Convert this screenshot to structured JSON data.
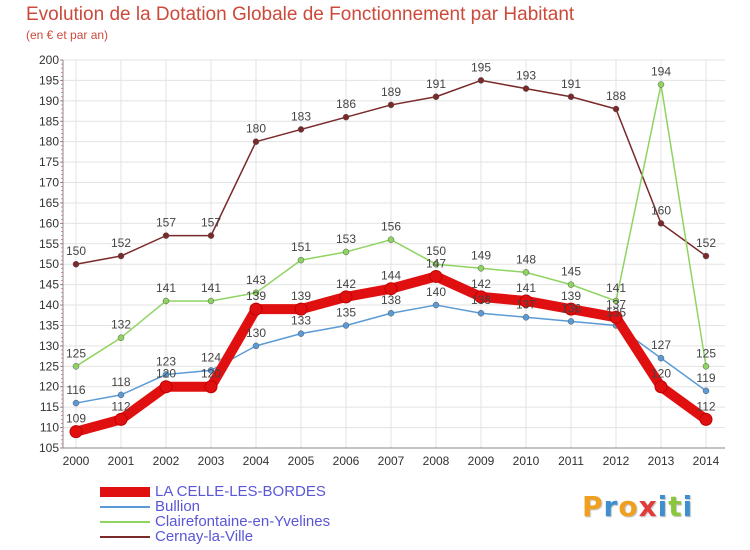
{
  "chart_data": {
    "type": "line",
    "title": "Evolution de la Dotation Globale de Fonctionnement par Habitant",
    "subtitle": "(en € et par an)",
    "x": [
      "2000",
      "2001",
      "2002",
      "2003",
      "2004",
      "2005",
      "2006",
      "2007",
      "2008",
      "2009",
      "2010",
      "2011",
      "2012",
      "2013",
      "2014"
    ],
    "ylim": [
      105,
      200
    ],
    "yticks": [
      105,
      110,
      115,
      120,
      125,
      130,
      135,
      140,
      145,
      150,
      155,
      160,
      165,
      170,
      175,
      180,
      185,
      190,
      195,
      200
    ],
    "grid": true,
    "legend_position": "bottom-left",
    "series": [
      {
        "name": "LA CELLE-LES-BORDES",
        "color": "#e01010",
        "values": [
          109,
          112,
          120,
          120,
          139,
          139,
          142,
          144,
          147,
          142,
          141,
          139,
          137,
          120,
          112
        ]
      },
      {
        "name": "Bullion",
        "color": "#5b9bd5",
        "values": [
          116,
          118,
          123,
          124,
          130,
          133,
          135,
          138,
          140,
          138,
          137,
          136,
          135,
          127,
          119
        ]
      },
      {
        "name": "Clairefontaine-en-Yvelines",
        "color": "#8fd460",
        "values": [
          125,
          132,
          141,
          141,
          143,
          151,
          153,
          156,
          150,
          149,
          148,
          145,
          141,
          194,
          125
        ]
      },
      {
        "name": "Cernay-la-Ville",
        "color": "#7a2a2a",
        "values": [
          150,
          152,
          157,
          157,
          180,
          183,
          186,
          189,
          191,
          195,
          193,
          191,
          188,
          160,
          152
        ]
      }
    ]
  },
  "logo": {
    "letters": [
      {
        "ch": "P",
        "color": "#f0a020"
      },
      {
        "ch": "r",
        "color": "#3d8fd0"
      },
      {
        "ch": "o",
        "color": "#f0a020"
      },
      {
        "ch": "x",
        "color": "#e03c3c"
      },
      {
        "ch": "i",
        "color": "#3d8fd0"
      },
      {
        "ch": "t",
        "color": "#8cc63f"
      },
      {
        "ch": "i",
        "color": "#3d8fd0"
      }
    ]
  }
}
